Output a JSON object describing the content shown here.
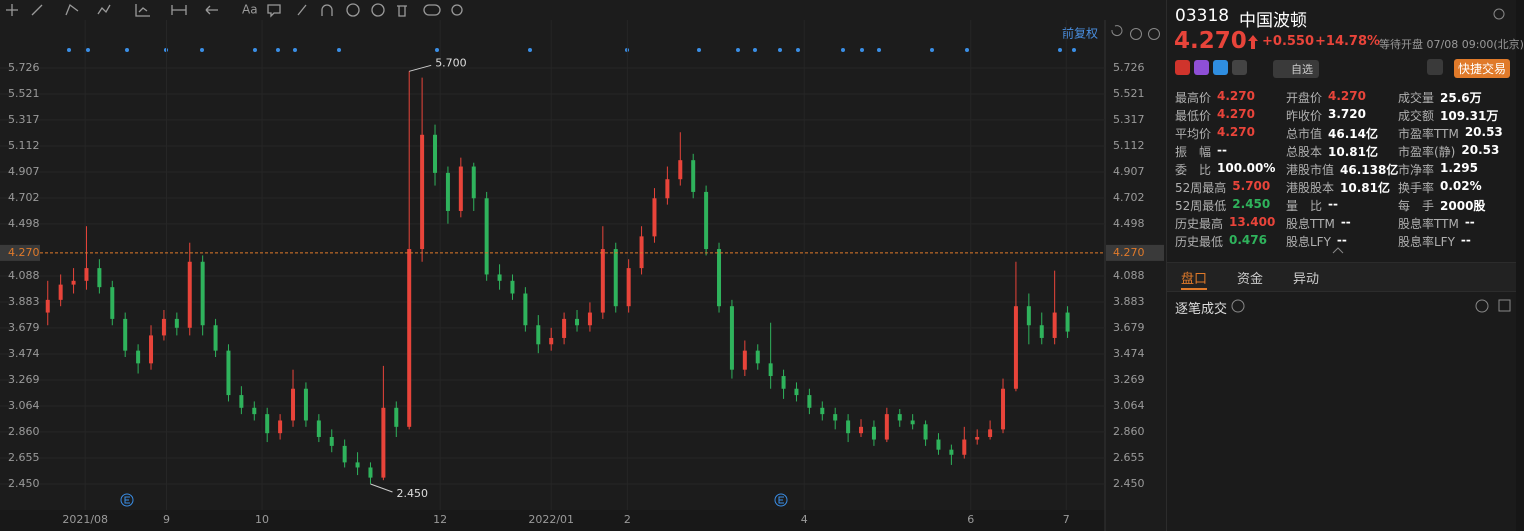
{
  "toolbar": {
    "font_tool": "Aa",
    "adjust": "前复权"
  },
  "chart_data": {
    "type": "candlestick",
    "open": [
      3.8,
      3.9,
      4.02,
      4.05,
      4.15,
      4.0,
      3.75,
      3.5,
      3.4,
      3.62,
      3.75,
      3.68,
      4.2,
      3.7,
      3.5,
      3.15,
      3.05,
      3.0,
      2.85,
      2.95,
      3.2,
      2.95,
      2.82,
      2.75,
      2.62,
      2.58,
      2.5,
      3.05,
      2.9,
      4.3,
      5.2,
      4.9,
      4.6,
      4.95,
      4.7,
      4.1,
      4.05,
      3.95,
      3.7,
      3.55,
      3.6,
      3.75,
      3.7,
      3.8,
      4.3,
      3.85,
      4.15,
      4.4,
      4.7,
      4.85,
      5.0,
      4.75,
      4.3,
      3.85,
      3.35,
      3.5,
      3.4,
      3.3,
      3.2,
      3.15,
      3.05,
      3.0,
      2.95,
      2.85,
      2.9,
      2.8,
      3.0,
      2.95,
      2.92,
      2.8,
      2.72,
      2.68,
      2.8,
      2.82,
      2.88,
      3.2,
      3.85,
      3.7,
      3.6,
      3.8
    ],
    "high": [
      4.05,
      4.1,
      4.15,
      4.48,
      4.22,
      4.05,
      3.8,
      3.55,
      3.7,
      3.82,
      3.8,
      4.35,
      4.25,
      3.75,
      3.55,
      3.22,
      3.1,
      3.05,
      3.0,
      3.35,
      3.25,
      3.0,
      2.88,
      2.8,
      2.7,
      2.62,
      3.38,
      3.1,
      5.7,
      5.65,
      5.28,
      4.95,
      5.02,
      4.98,
      4.75,
      4.18,
      4.1,
      4.0,
      3.78,
      3.68,
      3.8,
      3.82,
      3.88,
      4.48,
      4.35,
      4.22,
      4.48,
      4.78,
      4.95,
      5.22,
      5.05,
      4.8,
      4.35,
      3.9,
      3.58,
      3.55,
      3.72,
      3.35,
      3.25,
      3.2,
      3.1,
      3.05,
      3.0,
      2.96,
      2.95,
      3.05,
      3.04,
      3.0,
      2.95,
      2.85,
      2.76,
      2.9,
      2.88,
      2.95,
      3.28,
      4.2,
      3.95,
      3.8,
      4.13,
      3.85
    ],
    "low": [
      3.7,
      3.85,
      3.95,
      3.98,
      3.95,
      3.7,
      3.45,
      3.32,
      3.35,
      3.58,
      3.62,
      3.62,
      3.62,
      3.45,
      3.1,
      3.0,
      2.95,
      2.78,
      2.8,
      2.9,
      2.9,
      2.78,
      2.7,
      2.58,
      2.52,
      2.45,
      2.48,
      2.82,
      2.88,
      4.2,
      4.8,
      4.5,
      4.55,
      4.6,
      4.05,
      3.98,
      3.9,
      3.65,
      3.48,
      3.5,
      3.55,
      3.65,
      3.65,
      3.75,
      3.8,
      3.8,
      4.1,
      4.35,
      4.65,
      4.8,
      4.7,
      4.25,
      3.8,
      3.28,
      3.3,
      3.35,
      3.2,
      3.12,
      3.1,
      3.0,
      2.95,
      2.88,
      2.78,
      2.82,
      2.75,
      2.78,
      2.9,
      2.88,
      2.75,
      2.68,
      2.6,
      2.65,
      2.76,
      2.8,
      2.85,
      3.18,
      3.55,
      3.55,
      3.55,
      3.6
    ],
    "close": [
      3.9,
      4.02,
      4.05,
      4.15,
      4.0,
      3.75,
      3.5,
      3.4,
      3.62,
      3.75,
      3.68,
      4.2,
      3.7,
      3.5,
      3.15,
      3.05,
      3.0,
      2.85,
      2.95,
      3.2,
      2.95,
      2.82,
      2.75,
      2.62,
      2.58,
      2.5,
      3.05,
      2.9,
      4.3,
      5.2,
      4.9,
      4.6,
      4.95,
      4.7,
      4.1,
      4.05,
      3.95,
      3.7,
      3.55,
      3.6,
      3.75,
      3.7,
      3.8,
      4.3,
      3.85,
      4.15,
      4.4,
      4.7,
      4.85,
      5.0,
      4.75,
      4.3,
      3.85,
      3.35,
      3.5,
      3.4,
      3.3,
      3.2,
      3.15,
      3.05,
      3.0,
      2.95,
      2.85,
      2.9,
      2.8,
      3.0,
      2.95,
      2.92,
      2.8,
      2.72,
      2.68,
      2.8,
      2.82,
      2.88,
      3.2,
      3.85,
      3.7,
      3.6,
      3.8,
      3.65
    ],
    "up_color": "#e8443a",
    "down_color": "#2fb35c",
    "xlim": [
      -0.6,
      81.9
    ],
    "xticks": [
      {
        "value": 2.9,
        "label": "2021/08"
      },
      {
        "value": 9.2,
        "label": "9"
      },
      {
        "value": 16.6,
        "label": "10"
      },
      {
        "value": 30.4,
        "label": "12"
      },
      {
        "value": 39.0,
        "label": "2022/01"
      },
      {
        "value": 44.9,
        "label": "2"
      },
      {
        "value": 58.6,
        "label": "4"
      },
      {
        "value": 71.5,
        "label": "6"
      },
      {
        "value": 78.9,
        "label": "7"
      }
    ],
    "ylim": [
      2.245,
      6.104
    ],
    "yticks": [
      {
        "value": 2.45,
        "label": "2.450"
      },
      2.655,
      {
        "value": 2.86,
        "label": "2.860"
      },
      3.064,
      3.269,
      3.474,
      3.679,
      3.883,
      4.088,
      4.498,
      4.702,
      4.907,
      5.112,
      5.317,
      5.521,
      5.726
    ],
    "grid": true,
    "price_line": {
      "value": 4.27,
      "label": "4.270",
      "color": "#e07a2a"
    },
    "high_label": {
      "value": 5.7,
      "label": "5.700"
    },
    "low_label": {
      "value": 2.45,
      "label": "2.450"
    }
  },
  "quote": {
    "code": "03318",
    "name": "中国波顿",
    "price": "4.270",
    "change": "+0.550",
    "change_pct": "+14.78%",
    "status": "等待开盘 07/08 09:00(北京)",
    "watch": "自选",
    "trade": "快捷交易",
    "stats": [
      [
        {
          "label": "最高价",
          "value": "4.270",
          "color": "#e8443a"
        },
        {
          "label": "开盘价",
          "value": "4.270",
          "color": "#e8443a"
        },
        {
          "label": "成交量",
          "value": "25.6万",
          "color": "#ffffff"
        }
      ],
      [
        {
          "label": "最低价",
          "value": "4.270",
          "color": "#e8443a"
        },
        {
          "label": "昨收价",
          "value": "3.720",
          "color": "#ffffff"
        },
        {
          "label": "成交额",
          "value": "109.31万",
          "color": "#ffffff"
        }
      ],
      [
        {
          "label": "平均价",
          "value": "4.270",
          "color": "#e8443a"
        },
        {
          "label": "总市值",
          "value": "46.14亿",
          "color": "#ffffff"
        },
        {
          "label": "市盈率TTM",
          "value": "20.53",
          "color": "#ffffff"
        }
      ],
      [
        {
          "label": "振　幅",
          "value": "--",
          "color": "#ffffff"
        },
        {
          "label": "总股本",
          "value": "10.81亿",
          "color": "#ffffff"
        },
        {
          "label": "市盈率(静)",
          "value": "20.53",
          "color": "#ffffff"
        }
      ],
      [
        {
          "label": "委　比",
          "value": "100.00%",
          "color": "#ffffff"
        },
        {
          "label": "港股市值",
          "value": "46.138亿",
          "color": "#ffffff"
        },
        {
          "label": "市净率",
          "value": "1.295",
          "color": "#ffffff"
        }
      ],
      [
        {
          "label": "52周最高",
          "value": "5.700",
          "color": "#e8443a"
        },
        {
          "label": "港股股本",
          "value": "10.81亿",
          "color": "#ffffff"
        },
        {
          "label": "换手率",
          "value": "0.02%",
          "color": "#ffffff"
        }
      ],
      [
        {
          "label": "52周最低",
          "value": "2.450",
          "color": "#2fb35c"
        },
        {
          "label": "量　比",
          "value": "--",
          "color": "#ffffff"
        },
        {
          "label": "每　手",
          "value": "2000股",
          "color": "#ffffff"
        }
      ],
      [
        {
          "label": "历史最高",
          "value": "13.400",
          "color": "#e8443a"
        },
        {
          "label": "股息TTM",
          "value": "--",
          "color": "#ffffff"
        },
        {
          "label": "股息率TTM",
          "value": "--",
          "color": "#ffffff"
        }
      ],
      [
        {
          "label": "历史最低",
          "value": "0.476",
          "color": "#2fb35c"
        },
        {
          "label": "股息LFY",
          "value": "--",
          "color": "#ffffff"
        },
        {
          "label": "股息率LFY",
          "value": "--",
          "color": "#ffffff"
        }
      ]
    ],
    "tabs": [
      "盘口",
      "资金",
      "异动"
    ],
    "section": "逐笔成交"
  }
}
